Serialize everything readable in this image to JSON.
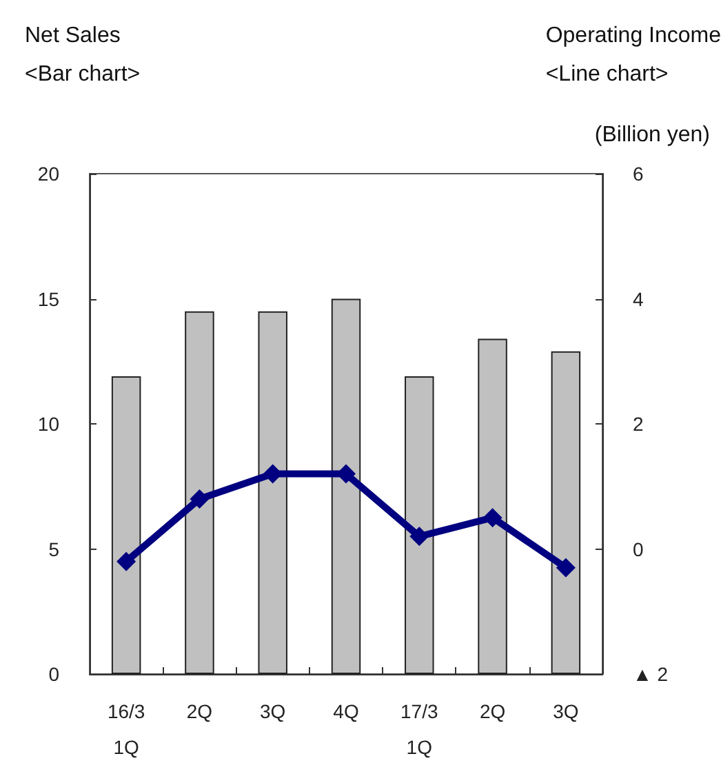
{
  "chart_data": {
    "type": "bar",
    "ylabel": "Net Sales\n<Bar chart>",
    "y2label": "Operating Income\n<Line chart>",
    "annotations": [
      "(Billion yen)"
    ],
    "categories": [
      "16/3\n1Q",
      "2Q",
      "3Q",
      "4Q",
      "17/3\n1Q",
      "2Q",
      "3Q"
    ],
    "series": [
      {
        "color": "#c0c0c0",
        "values": [
          11.9,
          14.5,
          14.5,
          15.0,
          11.9,
          13.4,
          12.9
        ]
      },
      {
        "type": "line",
        "axis": "y2",
        "color": "#000080",
        "values": [
          -0.2,
          0.8,
          1.2,
          1.2,
          0.2,
          0.5,
          -0.3
        ]
      }
    ],
    "ylim": [
      0,
      20
    ],
    "yticks": [
      0,
      5,
      10,
      15,
      20
    ],
    "y2lim": [
      -2,
      6
    ],
    "y2ticks": [
      {
        "value": -2,
        "label": "▲ 2"
      },
      0,
      2,
      4,
      6
    ],
    "marker": "diamond",
    "line_style": "solid",
    "grid": false
  }
}
